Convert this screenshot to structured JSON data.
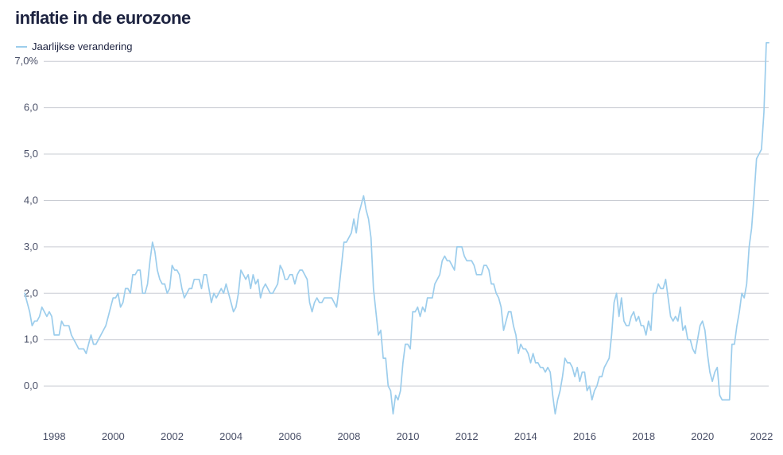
{
  "title": "inflatie in de eurozone",
  "legend": {
    "label": "Jaarlijkse verandering"
  },
  "colors": {
    "line": "#9ccdec",
    "grid": "#c9ccd3",
    "text": "#1d2340"
  },
  "chart_data": {
    "type": "line",
    "title": "inflatie in de eurozone",
    "xlabel": "",
    "ylabel": "",
    "grid": true,
    "legend_position": "top-left",
    "x_start": 1997.0,
    "x_step": 0.08333,
    "xlim": [
      1996.7,
      2022.65
    ],
    "ylim": [
      -0.7,
      7.5
    ],
    "y_ticks": [
      0,
      1,
      2,
      3,
      4,
      5,
      6,
      7
    ],
    "y_tick_labels": [
      "0,0",
      "1,0",
      "2,0",
      "3,0",
      "4,0",
      "5,0",
      "6,0",
      "7,0%"
    ],
    "x_ticks": [
      1998,
      2000,
      2002,
      2004,
      2006,
      2008,
      2010,
      2012,
      2014,
      2016,
      2018,
      2020,
      2022
    ],
    "x_tick_labels": [
      "1998",
      "2000",
      "2002",
      "2004",
      "2006",
      "2008",
      "2010",
      "2012",
      "2014",
      "2016",
      "2018",
      "2020",
      "2022"
    ],
    "series": [
      {
        "name": "Jaarlijkse verandering",
        "values": [
          2.0,
          1.8,
          1.6,
          1.3,
          1.4,
          1.4,
          1.5,
          1.7,
          1.6,
          1.5,
          1.6,
          1.5,
          1.1,
          1.1,
          1.1,
          1.4,
          1.3,
          1.3,
          1.3,
          1.1,
          1.0,
          0.9,
          0.8,
          0.8,
          0.8,
          0.7,
          0.9,
          1.1,
          0.9,
          0.9,
          1.0,
          1.1,
          1.2,
          1.3,
          1.5,
          1.7,
          1.9,
          1.9,
          2.0,
          1.7,
          1.8,
          2.1,
          2.1,
          2.0,
          2.4,
          2.4,
          2.5,
          2.5,
          2.0,
          2.0,
          2.2,
          2.7,
          3.1,
          2.9,
          2.5,
          2.3,
          2.2,
          2.2,
          2.0,
          2.1,
          2.6,
          2.5,
          2.5,
          2.4,
          2.1,
          1.9,
          2.0,
          2.1,
          2.1,
          2.3,
          2.3,
          2.3,
          2.1,
          2.4,
          2.4,
          2.1,
          1.8,
          2.0,
          1.9,
          2.0,
          2.1,
          2.0,
          2.2,
          2.0,
          1.8,
          1.6,
          1.7,
          2.0,
          2.5,
          2.4,
          2.3,
          2.4,
          2.1,
          2.4,
          2.2,
          2.3,
          1.9,
          2.1,
          2.2,
          2.1,
          2.0,
          2.0,
          2.1,
          2.2,
          2.6,
          2.5,
          2.3,
          2.3,
          2.4,
          2.4,
          2.2,
          2.4,
          2.5,
          2.5,
          2.4,
          2.3,
          1.8,
          1.6,
          1.8,
          1.9,
          1.8,
          1.8,
          1.9,
          1.9,
          1.9,
          1.9,
          1.8,
          1.7,
          2.1,
          2.6,
          3.1,
          3.1,
          3.2,
          3.3,
          3.6,
          3.3,
          3.7,
          3.9,
          4.1,
          3.8,
          3.6,
          3.2,
          2.1,
          1.6,
          1.1,
          1.2,
          0.6,
          0.6,
          0.0,
          -0.1,
          -0.6,
          -0.2,
          -0.3,
          -0.1,
          0.5,
          0.9,
          0.9,
          0.8,
          1.6,
          1.6,
          1.7,
          1.5,
          1.7,
          1.6,
          1.9,
          1.9,
          1.9,
          2.2,
          2.3,
          2.4,
          2.7,
          2.8,
          2.7,
          2.7,
          2.6,
          2.5,
          3.0,
          3.0,
          3.0,
          2.8,
          2.7,
          2.7,
          2.7,
          2.6,
          2.4,
          2.4,
          2.4,
          2.6,
          2.6,
          2.5,
          2.2,
          2.2,
          2.0,
          1.9,
          1.7,
          1.2,
          1.4,
          1.6,
          1.6,
          1.3,
          1.1,
          0.7,
          0.9,
          0.8,
          0.8,
          0.7,
          0.5,
          0.7,
          0.5,
          0.5,
          0.4,
          0.4,
          0.3,
          0.4,
          0.3,
          -0.2,
          -0.6,
          -0.3,
          -0.1,
          0.2,
          0.6,
          0.5,
          0.5,
          0.4,
          0.2,
          0.4,
          0.1,
          0.3,
          0.3,
          -0.1,
          0.0,
          -0.3,
          -0.1,
          0.0,
          0.2,
          0.2,
          0.4,
          0.5,
          0.6,
          1.1,
          1.8,
          2.0,
          1.5,
          1.9,
          1.4,
          1.3,
          1.3,
          1.5,
          1.6,
          1.4,
          1.5,
          1.3,
          1.3,
          1.1,
          1.4,
          1.2,
          2.0,
          2.0,
          2.2,
          2.1,
          2.1,
          2.3,
          1.9,
          1.5,
          1.4,
          1.5,
          1.4,
          1.7,
          1.2,
          1.3,
          1.0,
          1.0,
          0.8,
          0.7,
          1.0,
          1.3,
          1.4,
          1.2,
          0.7,
          0.3,
          0.1,
          0.3,
          0.4,
          -0.2,
          -0.3,
          -0.3,
          -0.3,
          -0.3,
          0.9,
          0.9,
          1.3,
          1.6,
          2.0,
          1.9,
          2.2,
          3.0,
          3.4,
          4.1,
          4.9,
          5.0,
          5.1,
          5.9,
          7.4,
          7.4
        ]
      }
    ]
  }
}
